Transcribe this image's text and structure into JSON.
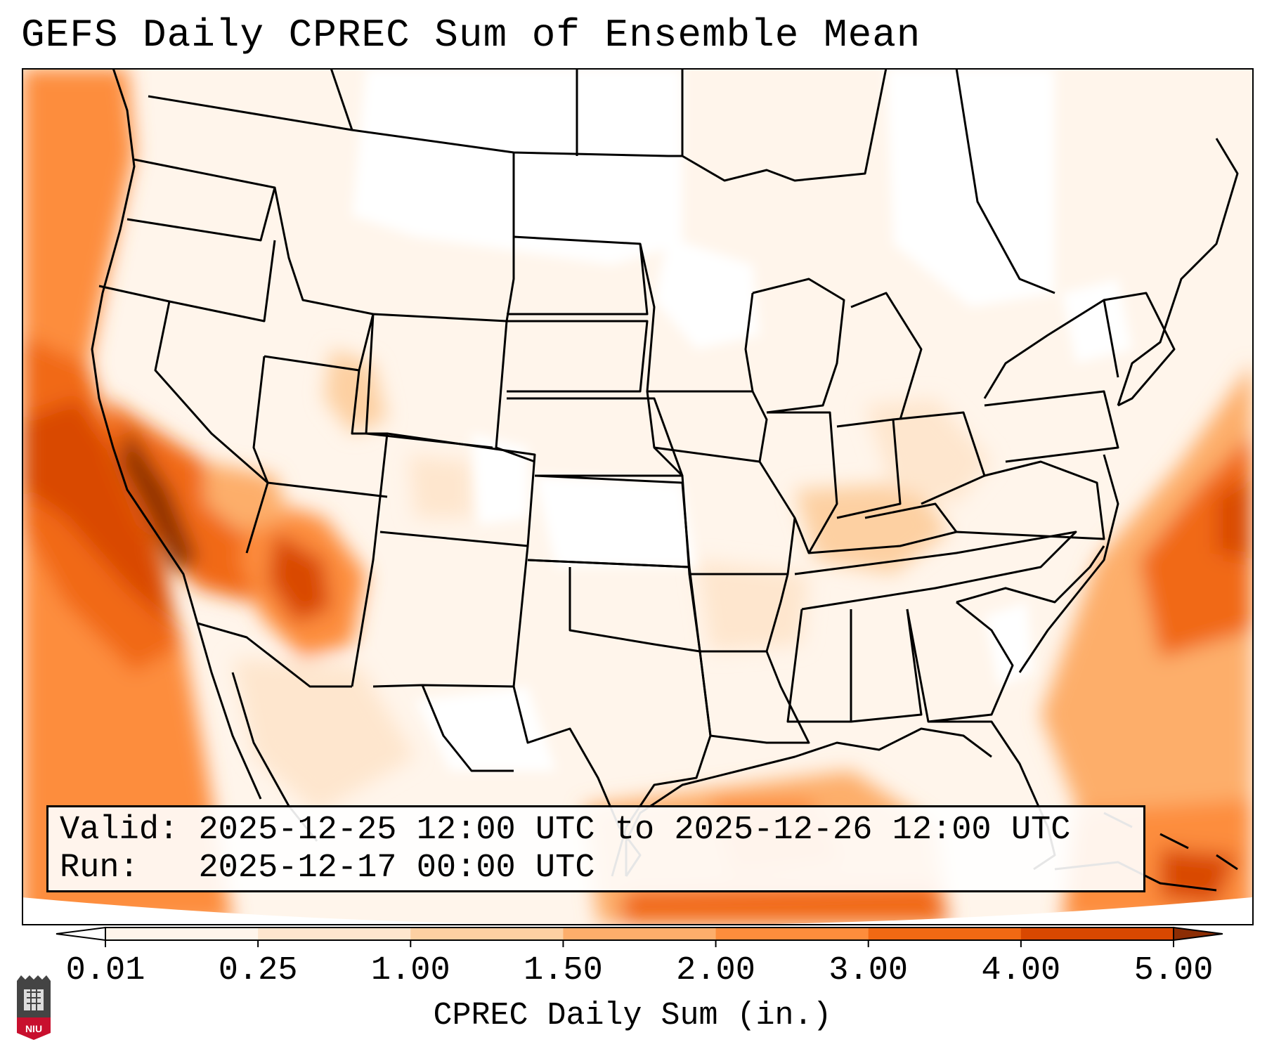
{
  "title": "GEFS Daily CPREC Sum of Ensemble Mean",
  "info": {
    "valid_label": "Valid:",
    "valid_text": "2025-12-25 12:00 UTC to 2025-12-26 12:00 UTC",
    "run_label": "Run:",
    "run_text": "2025-12-17 00:00 UTC"
  },
  "colorbar": {
    "label": "CPREC Daily Sum (in.)",
    "ticks": [
      "0.01",
      "0.25",
      "1.00",
      "1.50",
      "2.00",
      "3.00",
      "4.00",
      "5.00"
    ],
    "colors": [
      "#fff5eb",
      "#fee6ce",
      "#fdd0a2",
      "#fdae6b",
      "#fd8d3c",
      "#f16913",
      "#d94801",
      "#8c2d04"
    ],
    "extend": "both"
  },
  "logo": {
    "text": "NIU"
  },
  "colors": {
    "pale": "#fff5eb",
    "light": "#fee6ce",
    "tan": "#fdd0a2",
    "mid": "#fdae6b",
    "orange": "#fd8d3c",
    "deep": "#f16913",
    "dark": "#d94801",
    "darkest": "#8c2d04",
    "boundary": "#000000"
  }
}
